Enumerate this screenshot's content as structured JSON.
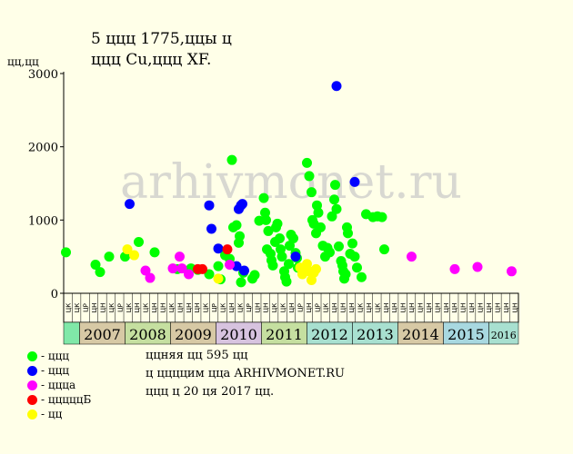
{
  "title": {
    "line1": "5 ццц 1775,ццы ц",
    "line2": "ццц Cu,ццц XF."
  },
  "watermark": "arhivmonet.ru",
  "notes": [
    "ццняя цц 595 цц",
    "ц ццццим цца ARHIVMONET.RU",
    "ццц ц 20 ця 2017 цц."
  ],
  "legend": [
    {
      "label": "- ццц",
      "color": "#00ff00"
    },
    {
      "label": "- ццц",
      "color": "#0000ff"
    },
    {
      "label": "- ццца",
      "color": "#ff00ff"
    },
    {
      "label": "- цццццБ",
      "color": "#ff0000"
    },
    {
      "label": "- цц",
      "color": "#ffff00"
    }
  ],
  "chart_data": {
    "type": "scatter",
    "ylabel": "цц,цц",
    "ylim": [
      0,
      3000
    ],
    "yticks": [
      0,
      1000,
      2000,
      3000
    ],
    "grid": false,
    "auction_labels": [
      "ЦК",
      "ЦК",
      "ЦР",
      "ЦН",
      "ЦН",
      "ЦК",
      "ЦР",
      "ЦК",
      "ЦН",
      "ЦК",
      "ЦН",
      "ЦН",
      "ЦК",
      "ЦН",
      "ЦН",
      "ЦН",
      "ЦК",
      "ЦР",
      "ЦК",
      "ЦН",
      "ЦК",
      "ЦР",
      "ЦН",
      "ЦН",
      "ЦК",
      "ЦК",
      "ЦН",
      "ЦР",
      "ЦН",
      "ЦР",
      "ЦК",
      "ЦН",
      "ЦН",
      "ЦН",
      "ЦК",
      "ЦН",
      "ЦК",
      "ЦН",
      "ЦН",
      "ЦН",
      "ЦН",
      "ЦН",
      "ЦН",
      "ЦН",
      "ЦН",
      "ЦН",
      "ЦН",
      "ЦН",
      "ЦН",
      "ЦН",
      "ЦН",
      "ЦН",
      "ЦН"
    ],
    "years": [
      {
        "label": "2007",
        "start": 2007.0,
        "end": 2008.0,
        "color": "#d7c9a5"
      },
      {
        "label": "2008",
        "start": 2008.0,
        "end": 2009.0,
        "color": "#c5dfa0"
      },
      {
        "label": "2009",
        "start": 2009.0,
        "end": 2010.0,
        "color": "#d7c9a5"
      },
      {
        "label": "2010",
        "start": 2010.0,
        "end": 2011.0,
        "color": "#d7c3df"
      },
      {
        "label": "2011",
        "start": 2011.0,
        "end": 2012.0,
        "color": "#c5dfa0"
      },
      {
        "label": "2012",
        "start": 2012.0,
        "end": 2013.0,
        "color": "#a8e0d0"
      },
      {
        "label": "2013",
        "start": 2013.0,
        "end": 2014.0,
        "color": "#a8e0d0"
      },
      {
        "label": "2014",
        "start": 2014.0,
        "end": 2015.0,
        "color": "#d7c9a5"
      },
      {
        "label": "2015",
        "start": 2015.0,
        "end": 2016.0,
        "color": "#a8d8e0"
      },
      {
        "label": "2016",
        "start": 2016.0,
        "end": 2016.65,
        "color": "#a8e0d0"
      }
    ],
    "xlim": [
      2006.65,
      2016.65
    ],
    "series": [
      {
        "name": "- ццц",
        "color": "#00ff00",
        "points": [
          [
            2006.7,
            560
          ],
          [
            2007.35,
            390
          ],
          [
            2007.45,
            290
          ],
          [
            2007.65,
            500
          ],
          [
            2008.0,
            500
          ],
          [
            2008.3,
            700
          ],
          [
            2008.65,
            560
          ],
          [
            2009.15,
            330
          ],
          [
            2009.45,
            340
          ],
          [
            2009.6,
            320
          ],
          [
            2009.85,
            260
          ],
          [
            2010.05,
            370
          ],
          [
            2010.1,
            190
          ],
          [
            2010.2,
            520
          ],
          [
            2010.3,
            470
          ],
          [
            2010.35,
            1820
          ],
          [
            2010.38,
            900
          ],
          [
            2010.45,
            930
          ],
          [
            2010.5,
            690
          ],
          [
            2010.52,
            780
          ],
          [
            2010.55,
            150
          ],
          [
            2010.6,
            280
          ],
          [
            2010.8,
            200
          ],
          [
            2010.85,
            250
          ],
          [
            2010.95,
            990
          ],
          [
            2011.05,
            1300
          ],
          [
            2011.08,
            1100
          ],
          [
            2011.1,
            1000
          ],
          [
            2011.12,
            600
          ],
          [
            2011.15,
            850
          ],
          [
            2011.2,
            540
          ],
          [
            2011.22,
            450
          ],
          [
            2011.25,
            380
          ],
          [
            2011.3,
            700
          ],
          [
            2011.32,
            900
          ],
          [
            2011.35,
            950
          ],
          [
            2011.4,
            750
          ],
          [
            2011.42,
            600
          ],
          [
            2011.45,
            500
          ],
          [
            2011.5,
            300
          ],
          [
            2011.52,
            220
          ],
          [
            2011.55,
            160
          ],
          [
            2011.6,
            400
          ],
          [
            2011.62,
            650
          ],
          [
            2011.65,
            800
          ],
          [
            2011.7,
            750
          ],
          [
            2011.75,
            550
          ],
          [
            2011.78,
            480
          ],
          [
            2011.8,
            350
          ],
          [
            2012.0,
            1780
          ],
          [
            2012.05,
            1600
          ],
          [
            2012.1,
            1380
          ],
          [
            2012.12,
            1000
          ],
          [
            2012.15,
            950
          ],
          [
            2012.2,
            820
          ],
          [
            2012.22,
            1200
          ],
          [
            2012.25,
            1100
          ],
          [
            2012.3,
            900
          ],
          [
            2012.35,
            650
          ],
          [
            2012.4,
            500
          ],
          [
            2012.45,
            620
          ],
          [
            2012.5,
            560
          ],
          [
            2012.55,
            1050
          ],
          [
            2012.6,
            1280
          ],
          [
            2012.62,
            1480
          ],
          [
            2012.65,
            1150
          ],
          [
            2012.7,
            640
          ],
          [
            2012.75,
            440
          ],
          [
            2012.78,
            380
          ],
          [
            2012.8,
            300
          ],
          [
            2012.82,
            200
          ],
          [
            2012.85,
            260
          ],
          [
            2012.88,
            900
          ],
          [
            2012.9,
            820
          ],
          [
            2012.95,
            540
          ],
          [
            2013.0,
            680
          ],
          [
            2013.05,
            500
          ],
          [
            2013.1,
            350
          ],
          [
            2013.2,
            220
          ],
          [
            2013.3,
            1080
          ],
          [
            2013.45,
            1040
          ],
          [
            2013.55,
            1050
          ],
          [
            2013.65,
            1040
          ],
          [
            2013.7,
            600
          ]
        ]
      },
      {
        "name": "- ццц",
        "color": "#0000ff",
        "points": [
          [
            2008.1,
            1220
          ],
          [
            2009.85,
            1200
          ],
          [
            2009.9,
            880
          ],
          [
            2010.05,
            610
          ],
          [
            2010.5,
            1150
          ],
          [
            2010.55,
            1200
          ],
          [
            2010.58,
            1220
          ],
          [
            2010.45,
            370
          ],
          [
            2010.62,
            310
          ],
          [
            2011.75,
            500
          ],
          [
            2012.65,
            2830
          ],
          [
            2013.05,
            1520
          ]
        ]
      },
      {
        "name": "- ццца",
        "color": "#ff00ff",
        "points": [
          [
            2008.45,
            310
          ],
          [
            2008.55,
            210
          ],
          [
            2009.05,
            340
          ],
          [
            2009.2,
            500
          ],
          [
            2009.25,
            340
          ],
          [
            2009.4,
            260
          ],
          [
            2010.3,
            390
          ],
          [
            2014.3,
            500
          ],
          [
            2015.25,
            330
          ],
          [
            2015.75,
            360
          ],
          [
            2016.5,
            300
          ]
        ]
      },
      {
        "name": "- цццццБ",
        "color": "#ff0000",
        "points": [
          [
            2009.6,
            330
          ],
          [
            2009.7,
            330
          ],
          [
            2010.25,
            600
          ]
        ]
      },
      {
        "name": "- цц",
        "color": "#ffff00",
        "points": [
          [
            2008.05,
            600
          ],
          [
            2008.2,
            520
          ],
          [
            2010.05,
            200
          ],
          [
            2011.85,
            350
          ],
          [
            2011.9,
            260
          ],
          [
            2011.95,
            320
          ],
          [
            2012.0,
            400
          ],
          [
            2012.05,
            300
          ],
          [
            2012.1,
            180
          ],
          [
            2012.15,
            280
          ],
          [
            2012.2,
            330
          ]
        ]
      }
    ]
  }
}
